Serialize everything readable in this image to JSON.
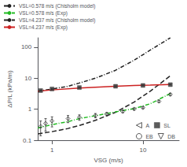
{
  "chart_data": {
    "type": "line",
    "xlabel": "VSG (m/s)",
    "ylabel": "ΔP/L (kPa/m)",
    "log": true,
    "xlim": [
      0.7,
      25
    ],
    "ylim": [
      0.1,
      200
    ],
    "xticks": [
      1,
      10
    ],
    "yticks": [
      0.1,
      1,
      10,
      100
    ],
    "grid": false,
    "legend": [
      "upper left",
      "lower right"
    ],
    "series": [
      {
        "name": "VSL=0.578 m/s (Chisholm model)",
        "type": "line",
        "color": "#222222",
        "line_style": "dashed",
        "x": [
          0.7,
          1.0,
          1.5,
          2.0,
          3.0,
          5.0,
          8.0,
          12.0,
          20.0
        ],
        "values": [
          0.16,
          0.19,
          0.24,
          0.3,
          0.44,
          0.8,
          1.7,
          3.8,
          12.0
        ]
      },
      {
        "name": "VSL=0.578 m/s (Exp)",
        "type": "line",
        "color": "#22bb22",
        "line_style": "dashdot",
        "x": [
          0.7,
          1.0,
          1.5,
          2.0,
          3.0,
          5.0,
          8.0,
          12.0,
          20.0
        ],
        "values": [
          0.25,
          0.32,
          0.4,
          0.5,
          0.62,
          0.82,
          1.05,
          1.5,
          3.2
        ]
      },
      {
        "name": "VSL=4.237 m/s (Chisholm model)",
        "type": "line",
        "color": "#222222",
        "line_style": "dashdot",
        "x": [
          0.7,
          1.0,
          1.5,
          2.0,
          3.0,
          5.0,
          8.0,
          12.0,
          20.0
        ],
        "values": [
          3.8,
          4.5,
          5.5,
          7.0,
          10.0,
          18.0,
          38.0,
          80.0,
          200.0
        ]
      },
      {
        "name": "VSL=4.237 m/s (Exp)",
        "type": "line",
        "color": "#cc2222",
        "line_style": "solid",
        "x": [
          0.7,
          1.0,
          2.0,
          3.0,
          5.0,
          8.0,
          12.0,
          20.0
        ],
        "values": [
          3.8,
          4.2,
          4.8,
          5.1,
          5.5,
          5.8,
          6.0,
          6.3
        ]
      },
      {
        "type": "scatter",
        "color": "#333333",
        "marker": "open_diamond",
        "x": [
          0.75,
          0.85,
          1.0,
          1.5,
          2.0,
          3.0,
          4.0,
          6.0,
          8.0,
          10.0,
          15.0,
          20.0
        ],
        "values": [
          0.28,
          0.35,
          0.42,
          0.5,
          0.55,
          0.63,
          0.7,
          0.85,
          1.02,
          1.12,
          1.8,
          3.0
        ],
        "errors": [
          0.14,
          0.15,
          0.15,
          0.13,
          0.11,
          0.1,
          0.09,
          0.08,
          0.07,
          0.07,
          0.14,
          0.28
        ]
      },
      {
        "type": "scatter",
        "color": "#333333",
        "marker": "square",
        "x": [
          0.75,
          1.0,
          2.0,
          5.0,
          10.0,
          20.0
        ],
        "values": [
          4.0,
          4.5,
          5.0,
          5.5,
          5.85,
          6.2
        ],
        "errors": [
          0.15,
          0.12,
          0.1,
          0.08,
          0.07,
          0.06
        ]
      },
      {
        "name": "A",
        "type": "scatter",
        "color": "#333333",
        "marker": "open_triangle_left",
        "x": [],
        "values": []
      },
      {
        "name": "SL",
        "type": "scatter",
        "color": "#333333",
        "marker": "square",
        "x": [],
        "values": []
      },
      {
        "name": "EB",
        "type": "scatter",
        "color": "#333333",
        "marker": "open_circle",
        "x": [],
        "values": []
      },
      {
        "name": "DB",
        "type": "scatter",
        "color": "#333333",
        "marker": "open_triangle_down",
        "x": [],
        "values": []
      }
    ]
  }
}
